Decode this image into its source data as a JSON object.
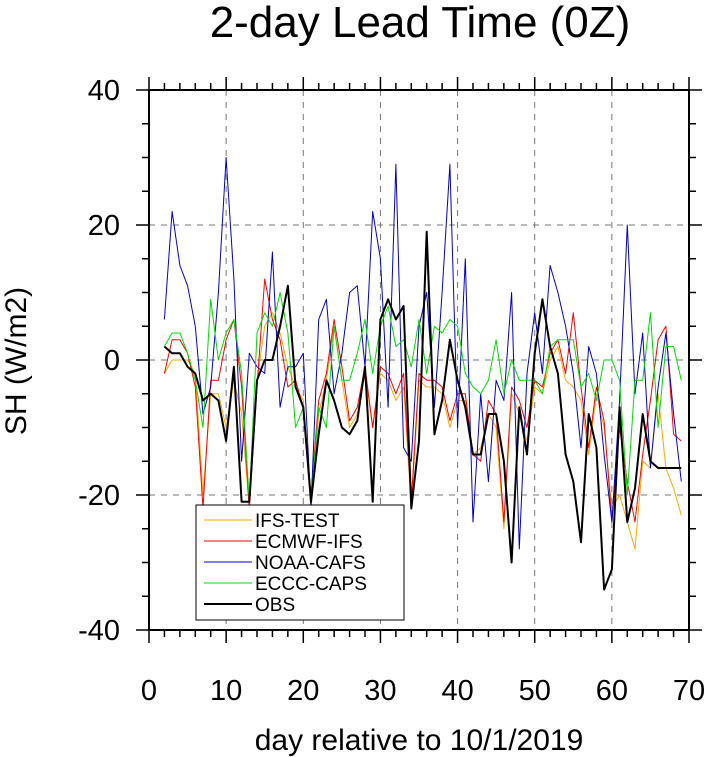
{
  "chart_data": {
    "type": "line",
    "title": "2-day Lead Time (0Z)",
    "xlabel": "day relative to 10/1/2019",
    "ylabel": "SH (W/m2)",
    "xlim": [
      0,
      70
    ],
    "ylim": [
      -40,
      40
    ],
    "xticks": [
      0,
      10,
      20,
      30,
      40,
      50,
      60,
      70
    ],
    "yticks": [
      -40,
      -20,
      0,
      20,
      40
    ],
    "grid": true,
    "legend_position": "bottom-left",
    "x": [
      2,
      3,
      4,
      5,
      6,
      7,
      8,
      9,
      10,
      11,
      12,
      13,
      14,
      15,
      16,
      17,
      18,
      19,
      20,
      21,
      22,
      23,
      24,
      25,
      26,
      27,
      28,
      29,
      30,
      31,
      32,
      33,
      34,
      35,
      36,
      37,
      38,
      39,
      40,
      41,
      42,
      43,
      44,
      45,
      46,
      47,
      48,
      49,
      50,
      51,
      52,
      53,
      54,
      55,
      56,
      57,
      58,
      59,
      60,
      61,
      62,
      63,
      64,
      65,
      66,
      67,
      68,
      69
    ],
    "series": [
      {
        "name": "IFS-TEST",
        "color": "#FFA500",
        "values": [
          -2,
          0,
          0,
          0,
          -2,
          -20,
          -5,
          -5,
          -10,
          -3,
          -8,
          -22,
          -3,
          5,
          7,
          4,
          -1,
          -4,
          -6,
          -22,
          -8,
          -3,
          5,
          -3,
          -10,
          -8,
          -2,
          -10,
          -2,
          -3,
          -6,
          -4,
          -22,
          -3,
          -4,
          -4,
          -5,
          -10,
          -6,
          -6,
          -14,
          -13,
          -8,
          -10,
          -25,
          -5,
          -8,
          -12,
          -4,
          -5,
          0,
          2,
          -3,
          -4,
          -6,
          -14,
          -5,
          -10,
          -22,
          -20,
          -24,
          -28,
          -15,
          -16,
          -5,
          -16,
          -19,
          -23
        ]
      },
      {
        "name": "ECMWF-IFS",
        "color": "#FF0000",
        "values": [
          -2,
          3,
          3,
          1,
          -4,
          -22,
          -3,
          -3,
          3,
          6,
          -4,
          -22,
          -4,
          12,
          6,
          3,
          -4,
          -3,
          -7,
          -20,
          -6,
          -2,
          6,
          -1,
          -9,
          -7,
          -1,
          -10,
          -1,
          -2,
          -5,
          -2,
          -21,
          -2,
          -3,
          -3,
          -4,
          -9,
          -5,
          -5,
          -14,
          -15,
          -6,
          -8,
          -24,
          -4,
          -6,
          -10,
          -3,
          -4,
          1,
          3,
          -2,
          7,
          -4,
          -13,
          -4,
          -9,
          -24,
          -10,
          -18,
          -24,
          -14,
          -6,
          3,
          5,
          -11,
          -12
        ]
      },
      {
        "name": "NOAA-CAFS",
        "color": "#0000CC",
        "values": [
          6,
          22,
          14,
          11,
          5,
          -8,
          -4,
          10,
          30,
          12,
          -15,
          1,
          -1,
          -2,
          16,
          -7,
          -1,
          -1,
          1,
          -22,
          6,
          9,
          -5,
          1,
          10,
          11,
          -1,
          22,
          15,
          -7,
          29,
          -13,
          -15,
          5,
          10,
          -7,
          10,
          29,
          -10,
          15,
          -24,
          -5,
          -18,
          -3,
          -6,
          10,
          -28,
          -2,
          7,
          -2,
          14,
          10,
          5,
          -2,
          -13,
          2,
          -2,
          -14,
          -24,
          -6,
          20,
          -5,
          4,
          -16,
          -4,
          4,
          -8,
          -18
        ]
      },
      {
        "name": "ECCC-CAPS",
        "color": "#00DD00",
        "values": [
          2,
          4,
          4,
          1,
          -3,
          -10,
          9,
          0,
          4,
          6,
          -2,
          -21,
          4,
          7,
          5,
          10,
          4,
          -10,
          -7,
          -21,
          -7,
          -10,
          5,
          -3,
          -3,
          1,
          6,
          -2,
          5,
          8,
          2,
          3,
          -1,
          6,
          -2,
          5,
          4,
          6,
          5,
          -2,
          -4,
          -5,
          -3,
          3,
          -5,
          0,
          -3,
          -3,
          -3,
          -5,
          2,
          3,
          3,
          3,
          -4,
          -2,
          -6,
          0,
          0,
          -3,
          -20,
          -3,
          -3,
          7,
          -10,
          2,
          2,
          -3
        ]
      },
      {
        "name": "OBS",
        "color": "#000000",
        "values": [
          2,
          1,
          1,
          -1,
          -2,
          -6,
          -5,
          -6,
          -12,
          -1,
          -21,
          -21,
          -3,
          0,
          0,
          5,
          11,
          -4,
          -7,
          -21,
          -11,
          -3,
          -6,
          -10,
          -11,
          -9,
          -1,
          -21,
          6,
          9,
          6,
          8,
          -22,
          -12,
          19,
          -11,
          -6,
          3,
          -3,
          -7,
          -14,
          -14,
          -8,
          -8,
          -15,
          -30,
          -7,
          -14,
          1,
          9,
          2,
          -2,
          -14,
          -18,
          -27,
          -8,
          -13,
          -34,
          -31,
          -7,
          -24,
          -19,
          -8,
          -15,
          -16,
          -16,
          -16,
          -16
        ]
      }
    ]
  }
}
